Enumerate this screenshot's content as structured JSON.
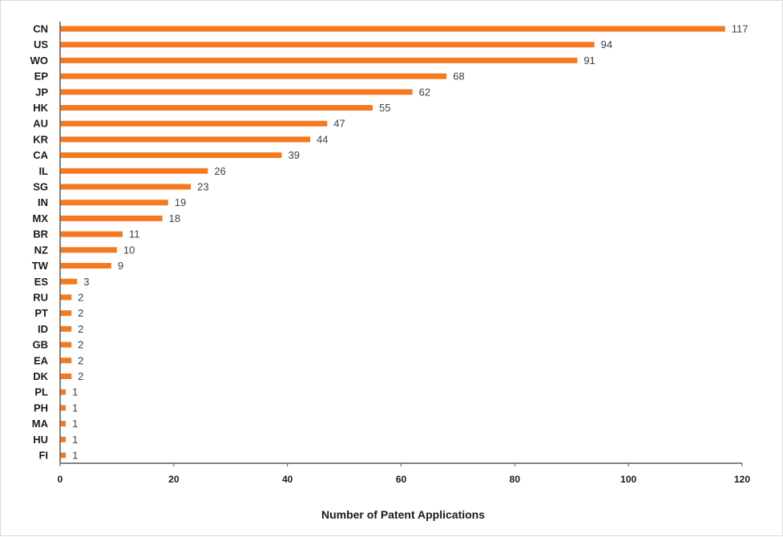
{
  "chart_data": {
    "type": "bar",
    "orientation": "horizontal",
    "categories": [
      "CN",
      "US",
      "WO",
      "EP",
      "JP",
      "HK",
      "AU",
      "KR",
      "CA",
      "IL",
      "SG",
      "IN",
      "MX",
      "BR",
      "NZ",
      "TW",
      "ES",
      "RU",
      "PT",
      "ID",
      "GB",
      "EA",
      "DK",
      "PL",
      "PH",
      "MA",
      "HU",
      "FI"
    ],
    "values": [
      117,
      94,
      91,
      68,
      62,
      55,
      47,
      44,
      39,
      26,
      23,
      19,
      18,
      11,
      10,
      9,
      3,
      2,
      2,
      2,
      2,
      2,
      2,
      1,
      1,
      1,
      1,
      1
    ],
    "title": "",
    "xlabel": "Number of Patent Applications",
    "ylabel": "",
    "xlim": [
      0,
      120
    ],
    "xticks": [
      0,
      20,
      40,
      60,
      80,
      100,
      120
    ],
    "grid": false,
    "legend": "none",
    "data_labels": true,
    "bar_color": "#f47a20"
  }
}
